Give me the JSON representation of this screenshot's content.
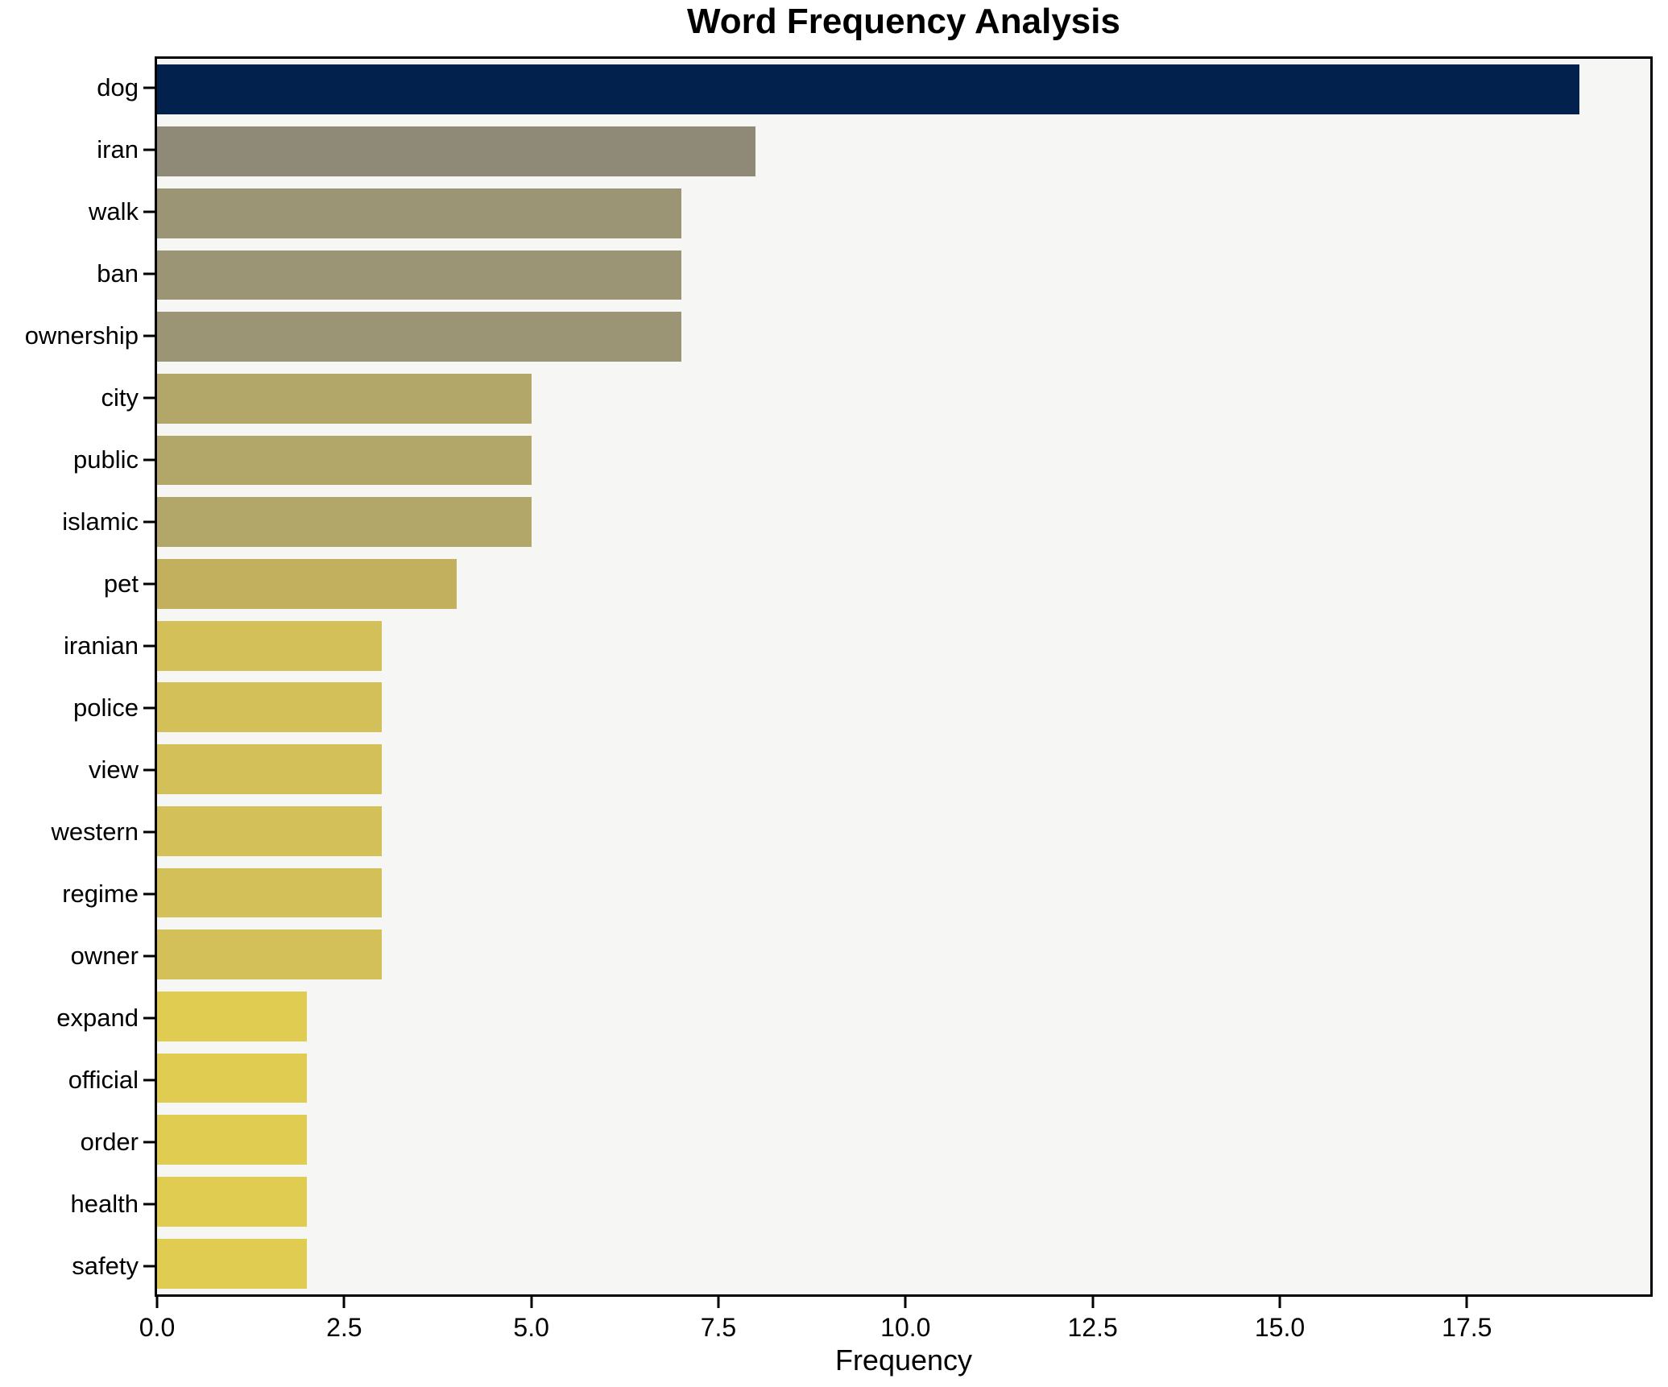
{
  "chart_data": {
    "type": "bar",
    "orientation": "horizontal",
    "title": "Word Frequency Analysis",
    "xlabel": "Frequency",
    "ylabel": "",
    "grid": false,
    "legend": null,
    "xlim": [
      0,
      19.95
    ],
    "x_ticks": [
      {
        "value": 0,
        "label": "0.0"
      },
      {
        "value": 2.5,
        "label": "2.5"
      },
      {
        "value": 5,
        "label": "5.0"
      },
      {
        "value": 7.5,
        "label": "7.5"
      },
      {
        "value": 10,
        "label": "10.0"
      },
      {
        "value": 12.5,
        "label": "12.5"
      },
      {
        "value": 15,
        "label": "15.0"
      },
      {
        "value": 17.5,
        "label": "17.5"
      }
    ],
    "categories": [
      "dog",
      "iran",
      "walk",
      "ban",
      "ownership",
      "city",
      "public",
      "islamic",
      "pet",
      "iranian",
      "police",
      "view",
      "western",
      "regime",
      "owner",
      "expand",
      "official",
      "order",
      "health",
      "safety"
    ],
    "values": [
      19,
      8,
      7,
      7,
      7,
      5,
      5,
      5,
      4,
      3,
      3,
      3,
      3,
      3,
      3,
      2,
      2,
      2,
      2,
      2
    ],
    "bar_colors": [
      "#02224d",
      "#8f8978",
      "#9c9575",
      "#9c9575",
      "#9c9575",
      "#b2a669",
      "#b2a669",
      "#b2a669",
      "#c2b05f",
      "#d3c059",
      "#d3c059",
      "#d3c059",
      "#d3c059",
      "#d3c059",
      "#d3c059",
      "#dfcc51",
      "#dfcc51",
      "#dfcc51",
      "#dfcc51",
      "#dfcc51"
    ],
    "colors": {
      "plot_background": "#f6f6f5",
      "figure_background": "#ffffff",
      "spine": "#000000",
      "tick": "#000000",
      "text": "#000000"
    }
  }
}
